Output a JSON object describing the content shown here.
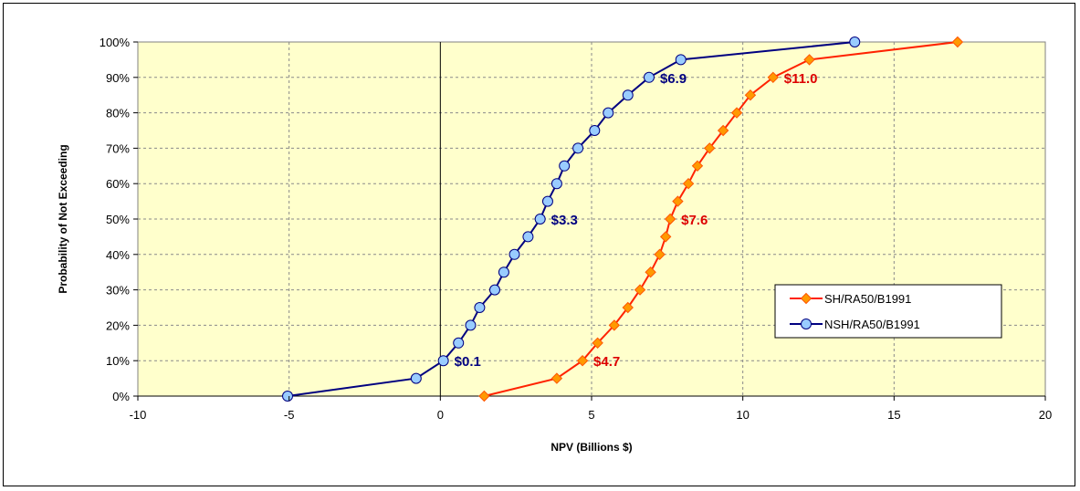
{
  "chart_data": {
    "type": "line",
    "title": "",
    "xlabel": "NPV (Billions $)",
    "ylabel": "Probability of Not Exceeding",
    "xlim": [
      -10,
      20
    ],
    "ylim": [
      0,
      100
    ],
    "x_ticks": [
      "-10",
      "-5",
      "0",
      "5",
      "10",
      "15",
      "20"
    ],
    "y_ticks": [
      "0%",
      "10%",
      "20%",
      "30%",
      "40%",
      "50%",
      "60%",
      "70%",
      "80%",
      "90%",
      "100%"
    ],
    "grid": true,
    "plot_background": "#ffffcc",
    "legend_position": "right",
    "series": [
      {
        "name": "SH/RA50/B1991",
        "color": "#ff2200",
        "marker": "diamond",
        "marker_color": "#ff9900",
        "x": [
          1.45,
          3.85,
          4.7,
          5.2,
          5.75,
          6.2,
          6.6,
          6.95,
          7.25,
          7.45,
          7.6,
          7.85,
          8.2,
          8.5,
          8.9,
          9.35,
          9.8,
          10.25,
          11.0,
          12.2,
          17.1
        ],
        "y": [
          0,
          5,
          10,
          15,
          20,
          25,
          30,
          35,
          40,
          45,
          50,
          55,
          60,
          65,
          70,
          75,
          80,
          85,
          90,
          95,
          100
        ]
      },
      {
        "name": "NSH/RA50/B1991",
        "color": "#000080",
        "marker": "circle",
        "marker_color": "#99ccff",
        "x": [
          -5.05,
          -0.8,
          0.1,
          0.6,
          1.0,
          1.3,
          1.8,
          2.1,
          2.45,
          2.9,
          3.3,
          3.55,
          3.85,
          4.1,
          4.55,
          5.1,
          5.55,
          6.2,
          6.9,
          7.95,
          13.7
        ],
        "y": [
          0,
          5,
          10,
          15,
          20,
          25,
          30,
          35,
          40,
          45,
          50,
          55,
          60,
          65,
          70,
          75,
          80,
          85,
          90,
          95,
          100
        ]
      }
    ],
    "annotations": [
      {
        "text": "$0.1",
        "x": 0.1,
        "y": 10,
        "series": 1
      },
      {
        "text": "$3.3",
        "x": 3.3,
        "y": 50,
        "series": 1
      },
      {
        "text": "$6.9",
        "x": 6.9,
        "y": 90,
        "series": 1
      },
      {
        "text": "$4.7",
        "x": 4.7,
        "y": 10,
        "series": 0
      },
      {
        "text": "$7.6",
        "x": 7.6,
        "y": 50,
        "series": 0
      },
      {
        "text": "$11.0",
        "x": 11.0,
        "y": 90,
        "series": 0
      }
    ]
  }
}
